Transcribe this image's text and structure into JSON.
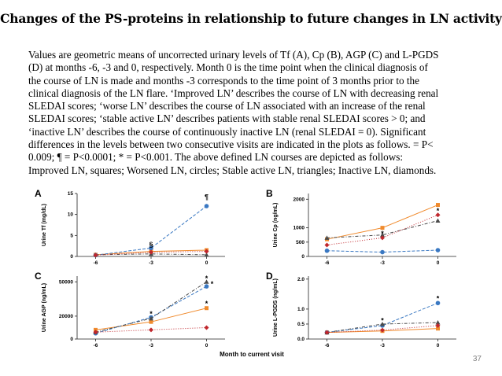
{
  "slide": {
    "title": "Changes of the PS-proteins in relationship to future changes in LN activity",
    "caption_lines": [
      "Values are geometric means of uncorrected urinary levels of Tf (A), Cp (B), AGP (C) and L-PGDS",
      "(D) at months -6, -3 and 0, respectively. Month 0 is the time point when the clinical diagnosis of",
      "the course of LN is made and months -3 corresponds to the time point of 3 months prior to the",
      "clinical diagnosis of the LN flare. ‘Improved LN’ describes the course of LN with decreasing renal",
      "SLEDAI scores; ‘worse LN’ describes the course of LN associated with an increase of the renal",
      "SLEDAI scores; ‘stable active LN’ describes patients with stable renal SLEDAI scores > 0; and",
      "‘inactive LN’ describes the course of continuously inactive LN (renal SLEDAI = 0). Significant",
      "differences in the levels between two consecutive visits are indicated in the plots as follows.    = P<",
      "0.009; ¶ = P<0.0001; * = P<0.001. The above defined LN courses are depicted as follows:",
      "Improved LN, squares; Worsened LN, circles; Stable active LN, triangles; Inactive LN, diamonds."
    ],
    "x_axis_title": "Month to current visit",
    "page_number": "37"
  },
  "colors": {
    "improved": "#f08a2c",
    "worsened": "#3a78c2",
    "stable": "#4a4a4a",
    "inactive": "#c0272d"
  },
  "chart_data": [
    {
      "panel": "A",
      "type": "line",
      "ylabel": "Urine Tf (mg/dL)",
      "x": [
        -6,
        -3,
        0
      ],
      "x_ticks": [
        "-6",
        "-3",
        "0"
      ],
      "y_ticks": [
        "0",
        "5",
        "10",
        "15"
      ],
      "ylim": [
        0,
        15
      ],
      "series": [
        {
          "marker": "square",
          "values": [
            0.4,
            1.2,
            1.5
          ]
        },
        {
          "marker": "circle",
          "values": [
            0.3,
            2.0,
            12.0
          ]
        },
        {
          "marker": "triangle",
          "values": [
            0.4,
            0.6,
            0.4
          ]
        },
        {
          "marker": "diamond",
          "values": [
            0.3,
            1.0,
            1.2
          ]
        }
      ],
      "annotations": [
        {
          "text": "§",
          "x": -3,
          "y": 2.8
        },
        {
          "text": "¶",
          "x": 0,
          "y": 14.2
        }
      ]
    },
    {
      "panel": "B",
      "type": "line",
      "ylabel": "Urine Cp (ng/mL)",
      "x": [
        -6,
        -3,
        0
      ],
      "x_ticks": [
        "-6",
        "-3",
        "0"
      ],
      "y_ticks": [
        "0",
        "500",
        "1000",
        "2000"
      ],
      "ylim": [
        0,
        2200
      ],
      "series": [
        {
          "marker": "square",
          "values": [
            600,
            1000,
            1800
          ]
        },
        {
          "marker": "circle",
          "values": [
            200,
            150,
            220
          ]
        },
        {
          "marker": "triangle",
          "values": [
            650,
            750,
            1250
          ]
        },
        {
          "marker": "diamond",
          "values": [
            400,
            650,
            1450
          ]
        }
      ],
      "annotations": [
        {
          "text": "*",
          "x": -3,
          "y": 800
        },
        {
          "text": "*",
          "x": 0,
          "y": 1600
        }
      ]
    },
    {
      "panel": "C",
      "type": "line",
      "ylabel": "Urine AGP (ng/mL)",
      "x": [
        -6,
        -3,
        0
      ],
      "x_ticks": [
        "-6",
        "-3",
        "0"
      ],
      "y_ticks": [
        "0",
        "20000",
        "50000"
      ],
      "ylim": [
        0,
        55000
      ],
      "series": [
        {
          "marker": "square",
          "values": [
            8000,
            15000,
            27000
          ]
        },
        {
          "marker": "circle",
          "values": [
            5000,
            19000,
            46000
          ]
        },
        {
          "marker": "triangle",
          "values": [
            6000,
            18000,
            50000
          ]
        },
        {
          "marker": "diamond",
          "values": [
            6000,
            8000,
            10000
          ]
        }
      ],
      "annotations": [
        {
          "text": "*",
          "x": -3,
          "y": 22000
        },
        {
          "text": "*",
          "x": 0,
          "y": 53000
        },
        {
          "text": "*",
          "x": 0.3,
          "y": 48000
        },
        {
          "text": "*",
          "x": 0,
          "y": 31000
        }
      ]
    },
    {
      "panel": "D",
      "type": "line",
      "ylabel": "Urine L-PGDS (ng/mL)",
      "x": [
        -6,
        -3,
        0
      ],
      "x_ticks": [
        "-6",
        "-3",
        "0"
      ],
      "y_ticks": [
        "0.0",
        "0.5",
        "1.0",
        "2.0"
      ],
      "ylim": [
        0,
        2.1
      ],
      "series": [
        {
          "marker": "square",
          "values": [
            0.22,
            0.27,
            0.35
          ]
        },
        {
          "marker": "circle",
          "values": [
            0.22,
            0.45,
            1.2
          ]
        },
        {
          "marker": "triangle",
          "values": [
            0.22,
            0.5,
            0.55
          ]
        },
        {
          "marker": "diamond",
          "values": [
            0.22,
            0.3,
            0.45
          ]
        }
      ],
      "annotations": [
        {
          "text": "*",
          "x": -3,
          "y": 0.62
        },
        {
          "text": "*",
          "x": 0,
          "y": 1.35
        }
      ]
    }
  ]
}
